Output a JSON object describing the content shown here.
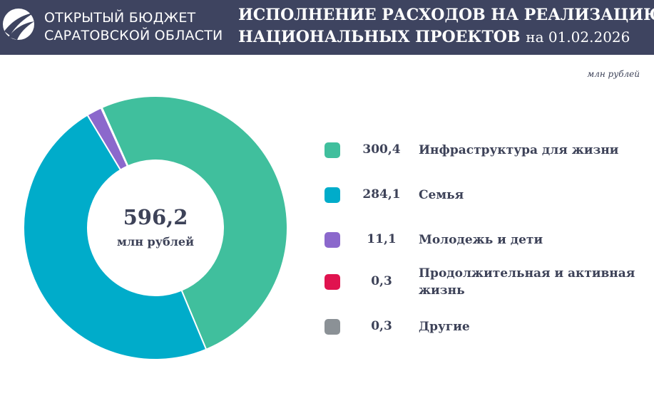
{
  "header": {
    "logo_line1": "ОТКРЫТЫЙ БЮДЖЕТ",
    "logo_line2": "САРАТОВСКОЙ ОБЛАСТИ",
    "title_line1": "ИСПОЛНЕНИЕ РАСХОДОВ НА РЕАЛИЗАЦИЮ",
    "title_line2": "НАЦИОНАЛЬНЫХ ПРОЕКТОВ",
    "title_date": "на 01.02.2026"
  },
  "units": "млн рублей",
  "chart_data": {
    "type": "donut",
    "center_value": "596,2",
    "center_unit": "млн рублей",
    "total": 596.2,
    "start_angle_deg": -114,
    "series": [
      {
        "name": "Инфраструктура для жизни",
        "value": 300.4,
        "display": "300,4",
        "color": "#40bf9d"
      },
      {
        "name": "Семья",
        "value": 284.1,
        "display": "284,1",
        "color": "#00acca"
      },
      {
        "name": "Молодежь и дети",
        "value": 11.1,
        "display": "11,1",
        "color": "#8b68cc"
      },
      {
        "name": "Продолжительная и активная жизнь",
        "value": 0.3,
        "display": "0,3",
        "color": "#e0134f"
      },
      {
        "name": "Другие",
        "value": 0.3,
        "display": "0,3",
        "color": "#8b9196"
      }
    ],
    "legend_order": [
      0,
      1,
      2,
      3,
      4
    ],
    "legend_position": "right"
  }
}
